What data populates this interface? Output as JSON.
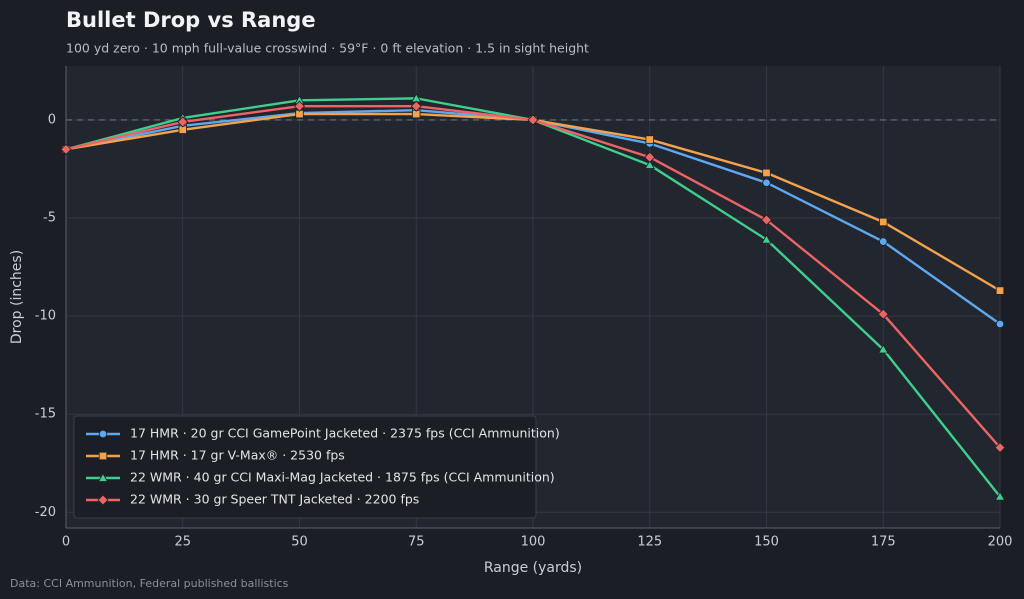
{
  "chart_data": {
    "type": "line",
    "title": "Bullet Drop vs Range",
    "subtitle": "100 yd zero  ·  10 mph full-value crosswind  ·  59°F  ·  0 ft elevation  ·  1.5 in sight height",
    "x_label": "Range (yards)",
    "y_label": "Drop (inches)",
    "source": "Data: CCI Ammunition, Federal published ballistics",
    "x": [
      0,
      25,
      50,
      75,
      100,
      125,
      150,
      175,
      200
    ],
    "series": [
      {
        "name": "17 HMR · 20 gr CCI GamePoint Jacketed · 2375 fps (CCI Ammunition)",
        "color": "#5ea8f2",
        "marker": "circle",
        "values": [
          -1.5,
          -0.3,
          0.35,
          0.5,
          0,
          -1.2,
          -3.2,
          -6.2,
          -10.4
        ]
      },
      {
        "name": "17 HMR · 17 gr V-Max® · 2530 fps",
        "color": "#f4a24c",
        "marker": "square",
        "values": [
          -1.5,
          -0.5,
          0.3,
          0.3,
          0,
          -1.0,
          -2.7,
          -5.2,
          -8.7
        ]
      },
      {
        "name": "22 WMR · 40 gr CCI Maxi-Mag Jacketed · 1875 fps (CCI Ammunition)",
        "color": "#3ecf8e",
        "marker": "triangle",
        "values": [
          -1.5,
          0.1,
          1.0,
          1.1,
          0,
          -2.3,
          -6.1,
          -11.7,
          -19.2
        ]
      },
      {
        "name": "22 WMR · 30 gr Speer TNT Jacketed · 2200 fps",
        "color": "#ec6464",
        "marker": "diamond",
        "values": [
          -1.5,
          -0.1,
          0.7,
          0.7,
          0,
          -1.9,
          -5.1,
          -9.9,
          -16.7
        ]
      }
    ],
    "xlim": [
      0,
      200
    ],
    "xticks": [
      0,
      25,
      50,
      75,
      100,
      125,
      150,
      175,
      200
    ],
    "ylim": [
      -20.8,
      2.75
    ],
    "yticks": [
      -20,
      -15,
      -10,
      -5,
      0
    ],
    "reference_line": 0,
    "grid": true,
    "legend": "lower left"
  }
}
